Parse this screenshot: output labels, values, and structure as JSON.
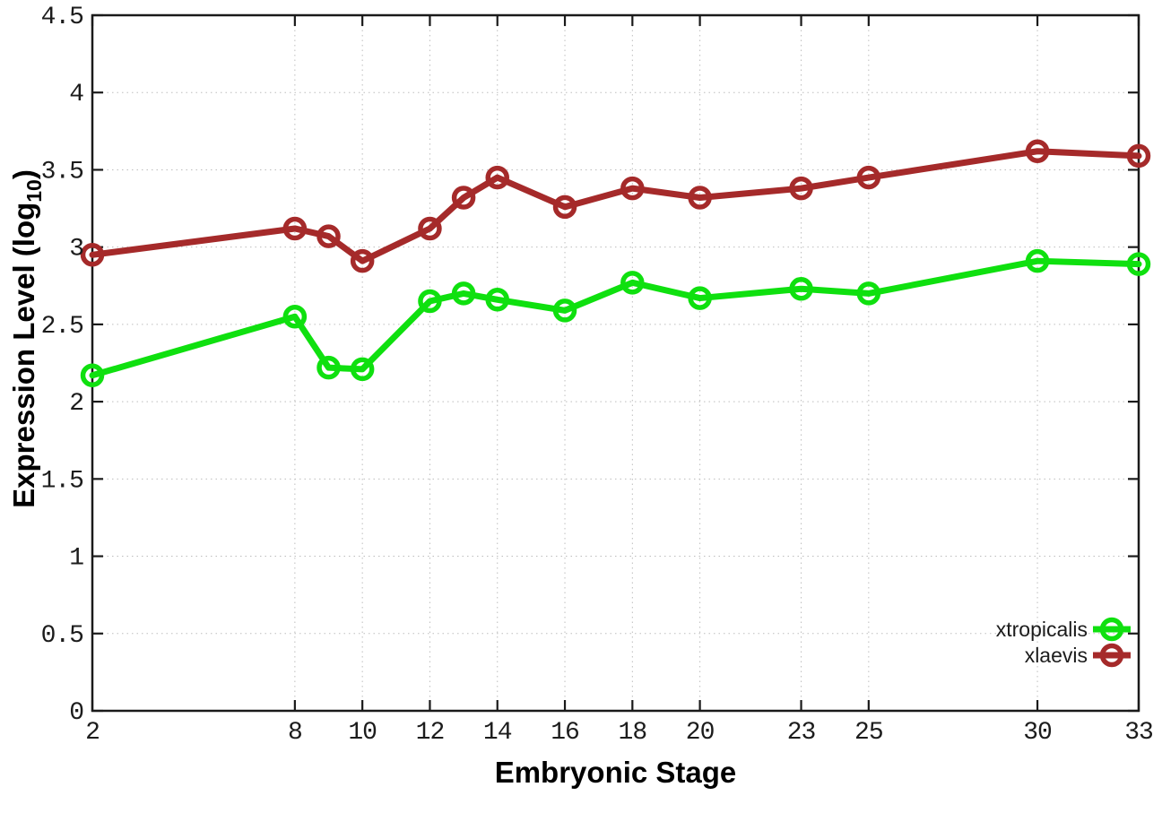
{
  "chart_data": {
    "type": "line",
    "title": "",
    "xlabel": "Embryonic Stage",
    "ylabel": "Expression Level (log10)",
    "ylabel_parts": {
      "prefix": "Expression Level (log",
      "subscript": "10",
      "suffix": ")"
    },
    "x": [
      2,
      8,
      9,
      10,
      12,
      13,
      14,
      16,
      18,
      20,
      23,
      25,
      30,
      33
    ],
    "series": [
      {
        "name": "xtropicalis",
        "color": "#0fe00f",
        "values": [
          2.17,
          2.55,
          2.22,
          2.21,
          2.65,
          2.7,
          2.66,
          2.59,
          2.77,
          2.67,
          2.73,
          2.7,
          2.91,
          2.89
        ]
      },
      {
        "name": "xlaevis",
        "color": "#a52a2a",
        "values": [
          2.95,
          3.12,
          3.07,
          2.91,
          3.12,
          3.32,
          3.45,
          3.26,
          3.38,
          3.32,
          3.38,
          3.45,
          3.62,
          3.59
        ]
      }
    ],
    "x_ticks": [
      2,
      8,
      10,
      12,
      14,
      16,
      18,
      20,
      23,
      25,
      30,
      33
    ],
    "x_tick_labels": [
      "2",
      "8",
      "10",
      "12",
      "14",
      "16",
      "18",
      "20",
      "23",
      "25",
      "30",
      "33"
    ],
    "y_ticks": [
      0,
      0.5,
      1,
      1.5,
      2,
      2.5,
      3,
      3.5,
      4,
      4.5
    ],
    "y_tick_labels": [
      "0",
      "0.5",
      "1",
      "1.5",
      "2",
      "2.5",
      "3",
      "3.5",
      "4",
      "4.5"
    ],
    "xlim": [
      2,
      33
    ],
    "ylim": [
      0,
      4.5
    ],
    "grid": true,
    "legend_position": "bottom-right",
    "legend_entries": [
      "xtropicalis",
      "xlaevis"
    ],
    "style": {
      "background": "#ffffff",
      "axis_color": "#1a1a1a",
      "grid_color": "#bdbdbd",
      "text_color": "#1c1c1c"
    }
  }
}
